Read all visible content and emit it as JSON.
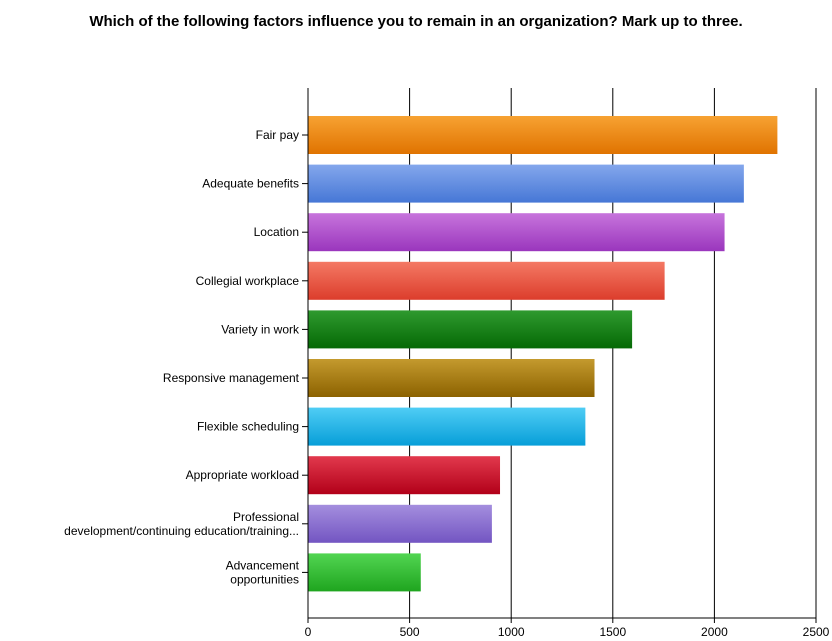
{
  "chart_data": {
    "type": "bar",
    "orientation": "horizontal",
    "title": "Which of the following factors influence you to remain in an organization? Mark up to three.",
    "xlabel": "",
    "ylabel": "",
    "xlim": [
      0,
      2500
    ],
    "x_ticks": [
      0,
      500,
      1000,
      1500,
      2000,
      2500
    ],
    "grid": "vertical",
    "categories": [
      [
        "Fair pay"
      ],
      [
        "Adequate benefits"
      ],
      [
        "Location"
      ],
      [
        "Collegial workplace"
      ],
      [
        "Variety in work"
      ],
      [
        "Responsive management"
      ],
      [
        "Flexible scheduling"
      ],
      [
        "Appropriate workload"
      ],
      [
        "Professional",
        "development/continuing education/training..."
      ],
      [
        "Advancement",
        "opportunities"
      ]
    ],
    "values": [
      2310,
      2145,
      2050,
      1755,
      1595,
      1410,
      1365,
      945,
      905,
      555
    ],
    "colors": [
      [
        "#f7a232",
        "#e07300"
      ],
      [
        "#84a7ec",
        "#4677d6"
      ],
      [
        "#c774dc",
        "#9a36bd"
      ],
      [
        "#f47964",
        "#dc3d2c"
      ],
      [
        "#2f9a2f",
        "#056905"
      ],
      [
        "#c49a2e",
        "#8c6200"
      ],
      [
        "#4fcdf5",
        "#079ed8"
      ],
      [
        "#e2394d",
        "#b20019"
      ],
      [
        "#a48ede",
        "#7355c2"
      ],
      [
        "#52d552",
        "#1fa51f"
      ]
    ]
  }
}
